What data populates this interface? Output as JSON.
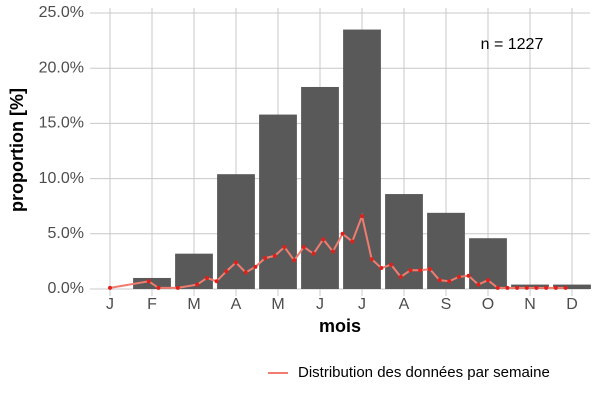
{
  "chart_data": {
    "type": "bar",
    "xlabel": "mois",
    "ylabel": "proportion [%]",
    "annotation": "n = 1227",
    "categories": [
      "J",
      "F",
      "M",
      "A",
      "M",
      "J",
      "J",
      "A",
      "S",
      "O",
      "N",
      "D"
    ],
    "values": [
      0,
      1.0,
      3.2,
      10.4,
      15.8,
      18.3,
      23.5,
      8.6,
      6.9,
      4.6,
      0.4,
      0.4
    ],
    "color": "#595959",
    "ylim": [
      0,
      25
    ],
    "yticks": [
      {
        "value": 0,
        "label": "0.0%"
      },
      {
        "value": 5,
        "label": "5.0%"
      },
      {
        "value": 10,
        "label": "10.0%"
      },
      {
        "value": 15,
        "label": "15.0%"
      },
      {
        "value": 20,
        "label": "20.0%"
      },
      {
        "value": 25,
        "label": "25.0%"
      }
    ],
    "grid": true,
    "line": {
      "name": "Distribution des données par semaine",
      "color": "#f07c70",
      "point_color": "#e0201b",
      "x": [
        1,
        5,
        6,
        8,
        10,
        11,
        12,
        13,
        14,
        15,
        16,
        17,
        18,
        19,
        20,
        21,
        22,
        23,
        24,
        25,
        26,
        27,
        28,
        29,
        30,
        31,
        32,
        33,
        34,
        35,
        36,
        37,
        38,
        39,
        40,
        41,
        42,
        43,
        44,
        45,
        46,
        47,
        48
      ],
      "values": [
        0.1,
        0.7,
        0.1,
        0.1,
        0.4,
        1.0,
        0.7,
        1.6,
        2.4,
        1.5,
        2.0,
        2.8,
        3.0,
        3.8,
        2.6,
        3.8,
        3.2,
        4.5,
        3.4,
        5.0,
        4.3,
        6.6,
        2.7,
        1.9,
        2.2,
        1.1,
        1.7,
        1.7,
        1.8,
        0.8,
        0.7,
        1.1,
        1.2,
        0.4,
        0.8,
        0.1,
        0.1,
        0.1,
        0.1,
        0.1,
        0.1,
        0.1,
        0.1
      ]
    },
    "legend": "bottom-right"
  }
}
